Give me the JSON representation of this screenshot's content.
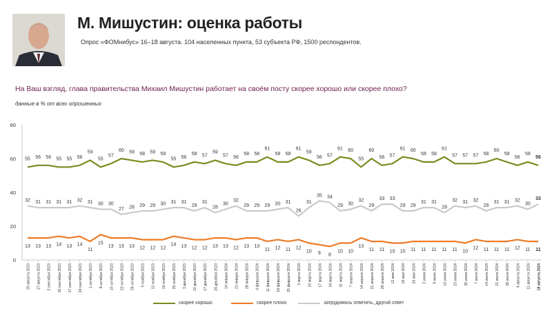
{
  "header": {
    "title": "М. Мишустин: оценка работы",
    "subtitle": "Опрос «ФОМнибус» 16–18 августа. 104 населенных пункта, 53 субъекта РФ, 1500 респондентов.",
    "question": "На Ваш взгляд, глава правительства Михаил Мишустин работает на своём посту скорее хорошо или скорее плохо?",
    "note": "данные в % от всех опрошенных"
  },
  "colors": {
    "good": "#7a8a1e",
    "bad": "#ec7a25",
    "undecided": "#c9c9c9"
  },
  "chart_data": {
    "type": "line",
    "ylim": [
      0,
      80
    ],
    "yticks": [
      0,
      20,
      40,
      60,
      80
    ],
    "grid": false,
    "legend_position": "bottom",
    "categories": [
      "20 августа 2023",
      "27 августа 2023",
      "3 сентября 2023",
      "10 сентября 2023",
      "17 сентября 2023",
      "24 сентября 2023",
      "1 октября 2023",
      "8 октября 2023",
      "15 октября 2023",
      "22 октября 2023",
      "29 октября 2023",
      "5 ноября 2023",
      "12 ноября 2023",
      "19 ноября 2023",
      "26 ноября 2023",
      "3 декабря 2023",
      "10 декабря 2023",
      "17 декабря 2023",
      "24 декабря 2023",
      "14 января 2024",
      "21 января 2024",
      "28 января 2024",
      "4 февраля 2024",
      "11 февраля 2024",
      "18 февраля 2024",
      "25 февраля 2024",
      "3 марта 2024",
      "10 марта 2024",
      "17 марта 2024",
      "24 марта 2024",
      "31 марта 2024",
      "7 апреля 2024",
      "14 апреля 2024",
      "21 апреля 2024",
      "28 апреля 2024",
      "12 мая 2024",
      "19 мая 2024",
      "26 мая 2024",
      "2 июня 2024",
      "9 июня 2024",
      "16 июня 2024",
      "23 июня 2024",
      "30 июня 2024",
      "7 июля 2024",
      "14 июля 2024",
      "21 июля 2024",
      "28 июля 2024",
      "4 августа 2024",
      "11 августа 2024",
      "18 августа 2024"
    ],
    "series": [
      {
        "name": "скорее хорошо",
        "color": "#7a8a1e",
        "values": [
          55,
          56,
          56,
          55,
          55,
          56,
          59,
          55,
          57,
          60,
          59,
          58,
          59,
          58,
          55,
          56,
          58,
          57,
          59,
          57,
          56,
          58,
          58,
          61,
          58,
          58,
          61,
          59,
          56,
          57,
          61,
          60,
          55,
          60,
          56,
          57,
          61,
          60,
          58,
          58,
          61,
          57,
          57,
          57,
          58,
          60,
          58,
          56,
          58,
          56
        ]
      },
      {
        "name": "скорее плохо",
        "color": "#ec7a25",
        "values": [
          13,
          13,
          13,
          14,
          13,
          14,
          11,
          15,
          13,
          13,
          13,
          12,
          12,
          12,
          14,
          13,
          12,
          12,
          13,
          13,
          12,
          13,
          13,
          11,
          12,
          11,
          12,
          10,
          9,
          8,
          10,
          10,
          13,
          11,
          11,
          10,
          10,
          11,
          11,
          11,
          11,
          11,
          10,
          12,
          11,
          11,
          11,
          12,
          11,
          11
        ]
      },
      {
        "name": "затрудняюсь ответить, другой ответ",
        "color": "#c9c9c9",
        "values": [
          32,
          31,
          31,
          31,
          31,
          32,
          31,
          30,
          30,
          27,
          28,
          29,
          29,
          30,
          31,
          31,
          29,
          31,
          28,
          30,
          32,
          29,
          29,
          29,
          30,
          31,
          26,
          31,
          35,
          34,
          29,
          30,
          32,
          29,
          33,
          33,
          29,
          29,
          31,
          31,
          28,
          32,
          31,
          32,
          29,
          31,
          31,
          32,
          30,
          33
        ]
      }
    ],
    "labels": {
      "скорее хорошо": [
        55,
        56,
        56,
        55,
        55,
        56,
        59,
        55,
        57,
        60,
        59,
        58,
        59,
        58,
        55,
        56,
        58,
        57,
        59,
        57,
        56,
        58,
        58,
        61,
        58,
        58,
        61,
        59,
        56,
        57,
        61,
        60,
        55,
        60,
        56,
        57,
        61,
        60,
        58,
        58,
        61,
        57,
        57,
        57,
        58,
        60,
        58,
        56,
        58,
        56
      ],
      "скорее плохо": [
        13,
        13,
        13,
        14,
        13,
        14,
        11,
        15,
        13,
        13,
        13,
        12,
        12,
        12,
        14,
        13,
        12,
        12,
        13,
        13,
        12,
        13,
        13,
        11,
        12,
        11,
        12,
        10,
        9,
        8,
        10,
        10,
        13,
        11,
        11,
        10,
        10,
        11,
        11,
        11,
        11,
        11,
        10,
        12,
        11,
        11,
        11,
        12,
        11,
        11
      ],
      "затрудняюсь ответить, другой ответ": [
        32,
        31,
        31,
        31,
        31,
        32,
        31,
        30,
        30,
        27,
        28,
        29,
        29,
        30,
        31,
        31,
        29,
        31,
        28,
        30,
        32,
        29,
        29,
        29,
        30,
        31,
        26,
        31,
        35,
        34,
        29,
        30,
        32,
        29,
        33,
        33,
        29,
        29,
        31,
        31,
        28,
        32,
        31,
        32,
        29,
        31,
        31,
        32,
        30,
        33
      ]
    }
  }
}
